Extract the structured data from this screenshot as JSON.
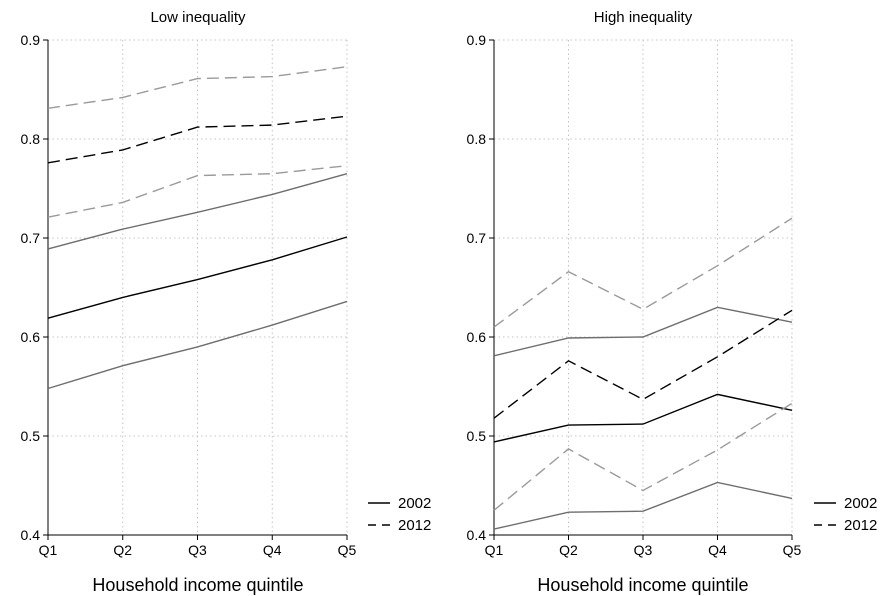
{
  "chart_data": [
    {
      "type": "line",
      "title": "Low inequality",
      "xlabel": "Household income quintile",
      "ylabel": "",
      "categories": [
        "Q1",
        "Q2",
        "Q3",
        "Q4",
        "Q5"
      ],
      "ylim": [
        0.4,
        0.9
      ],
      "yticks": [
        "0.4",
        "0.5",
        "0.6",
        "0.7",
        "0.8",
        "0.9"
      ],
      "grid": true,
      "legend_position": "bottom-right",
      "legend": [
        {
          "label": "2002",
          "style": "solid"
        },
        {
          "label": "2012",
          "style": "dashed"
        }
      ],
      "series": [
        {
          "year": "2002",
          "kind": "estimate",
          "color": "#000000",
          "style": "solid",
          "values": [
            0.619,
            0.64,
            0.658,
            0.678,
            0.701
          ]
        },
        {
          "year": "2002",
          "kind": "upper",
          "color": "#6e6e6e",
          "style": "solid",
          "values": [
            0.689,
            0.709,
            0.726,
            0.744,
            0.765
          ]
        },
        {
          "year": "2002",
          "kind": "lower",
          "color": "#6e6e6e",
          "style": "solid",
          "values": [
            0.548,
            0.571,
            0.59,
            0.612,
            0.636
          ]
        },
        {
          "year": "2012",
          "kind": "estimate",
          "color": "#000000",
          "style": "dashed",
          "values": [
            0.776,
            0.789,
            0.812,
            0.814,
            0.823
          ]
        },
        {
          "year": "2012",
          "kind": "upper",
          "color": "#9a9a9a",
          "style": "dashed",
          "values": [
            0.831,
            0.842,
            0.861,
            0.863,
            0.873
          ]
        },
        {
          "year": "2012",
          "kind": "lower",
          "color": "#9a9a9a",
          "style": "dashed",
          "values": [
            0.721,
            0.736,
            0.763,
            0.765,
            0.773
          ]
        }
      ]
    },
    {
      "type": "line",
      "title": "High inequality",
      "xlabel": "Household income quintile",
      "ylabel": "",
      "categories": [
        "Q1",
        "Q2",
        "Q3",
        "Q4",
        "Q5"
      ],
      "ylim": [
        0.4,
        0.9
      ],
      "yticks": [
        "0.4",
        "0.5",
        "0.6",
        "0.7",
        "0.8",
        "0.9"
      ],
      "grid": true,
      "legend_position": "bottom-right",
      "legend": [
        {
          "label": "2002",
          "style": "solid"
        },
        {
          "label": "2012",
          "style": "dashed"
        }
      ],
      "series": [
        {
          "year": "2002",
          "kind": "estimate",
          "color": "#000000",
          "style": "solid",
          "values": [
            0.494,
            0.511,
            0.512,
            0.542,
            0.526
          ]
        },
        {
          "year": "2002",
          "kind": "upper",
          "color": "#6e6e6e",
          "style": "solid",
          "values": [
            0.581,
            0.599,
            0.6,
            0.63,
            0.615
          ]
        },
        {
          "year": "2002",
          "kind": "lower",
          "color": "#6e6e6e",
          "style": "solid",
          "values": [
            0.406,
            0.423,
            0.424,
            0.453,
            0.437
          ]
        },
        {
          "year": "2012",
          "kind": "estimate",
          "color": "#000000",
          "style": "dashed",
          "values": [
            0.518,
            0.576,
            0.537,
            0.58,
            0.627
          ]
        },
        {
          "year": "2012",
          "kind": "upper",
          "color": "#9a9a9a",
          "style": "dashed",
          "values": [
            0.61,
            0.666,
            0.628,
            0.672,
            0.72
          ]
        },
        {
          "year": "2012",
          "kind": "lower",
          "color": "#9a9a9a",
          "style": "dashed",
          "values": [
            0.425,
            0.487,
            0.445,
            0.486,
            0.533
          ]
        }
      ]
    }
  ]
}
